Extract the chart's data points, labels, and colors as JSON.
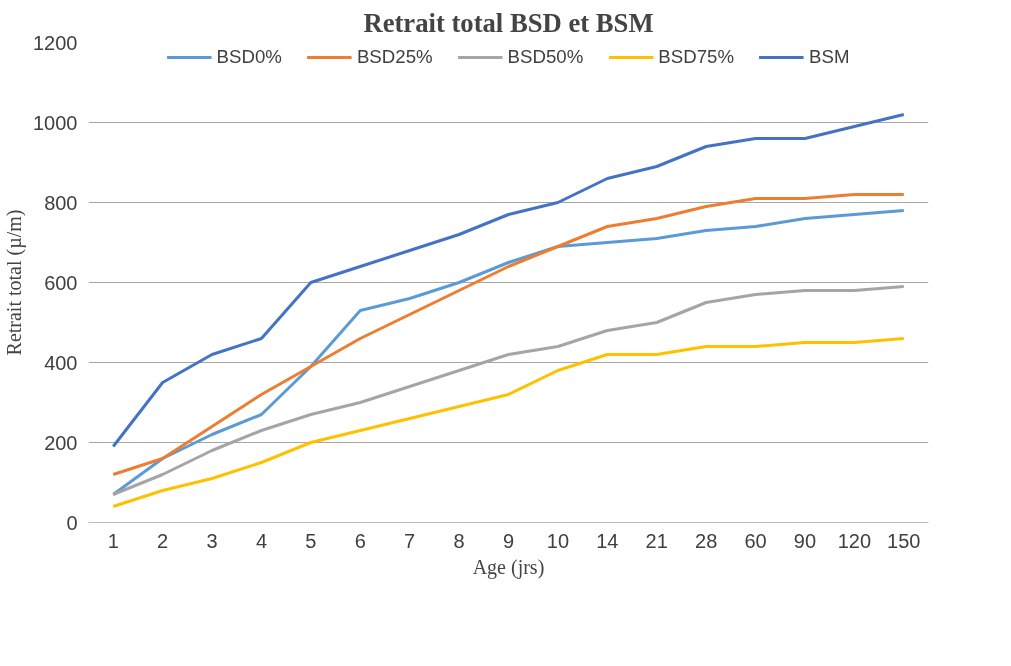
{
  "chart_data": {
    "type": "line",
    "title": "Retrait total BSD et BSM",
    "xlabel": "Age (jrs)",
    "ylabel": "Retrait total (µ/m)",
    "categories": [
      "1",
      "2",
      "3",
      "4",
      "5",
      "6",
      "7",
      "8",
      "9",
      "10",
      "14",
      "21",
      "28",
      "60",
      "90",
      "120",
      "150"
    ],
    "series": [
      {
        "name": "BSD0%",
        "color": "#5b9bd5",
        "values": [
          70,
          160,
          220,
          270,
          390,
          530,
          560,
          600,
          650,
          690,
          700,
          710,
          730,
          740,
          760,
          770,
          780
        ]
      },
      {
        "name": "BSD25%",
        "color": "#ed7d31",
        "values": [
          120,
          160,
          240,
          320,
          390,
          460,
          520,
          580,
          640,
          690,
          740,
          760,
          790,
          810,
          810,
          820,
          820
        ]
      },
      {
        "name": "BSD50%",
        "color": "#a5a5a5",
        "values": [
          70,
          120,
          180,
          230,
          270,
          300,
          340,
          380,
          420,
          440,
          480,
          500,
          550,
          570,
          580,
          580,
          590
        ]
      },
      {
        "name": "BSD75%",
        "color": "#ffc000",
        "values": [
          40,
          80,
          110,
          150,
          200,
          230,
          260,
          290,
          320,
          380,
          420,
          420,
          440,
          440,
          450,
          450,
          460
        ]
      },
      {
        "name": "BSM",
        "color": "#4472c4",
        "values": [
          190,
          350,
          420,
          460,
          600,
          640,
          680,
          720,
          770,
          800,
          860,
          890,
          940,
          960,
          960,
          990,
          1020
        ]
      }
    ],
    "ylim": [
      0,
      1200
    ],
    "yticks": [
      0,
      200,
      400,
      600,
      800,
      1000,
      1200
    ],
    "grid": "y",
    "legend": "top",
    "marker": "none",
    "line_style": "solid"
  }
}
